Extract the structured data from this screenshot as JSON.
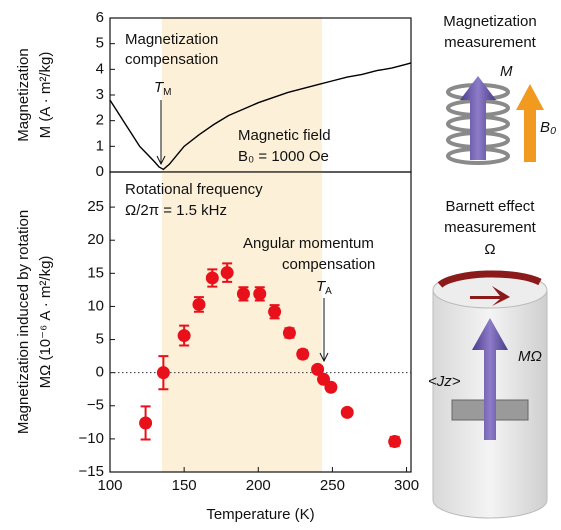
{
  "chart_data": [
    {
      "type": "line",
      "y_label": [
        "Magnetization",
        "M (A · m²/kg)"
      ],
      "annotations": {
        "compensation": [
          "Magnetization",
          "compensation"
        ],
        "temp": {
          "text": "T",
          "sub": "M"
        },
        "field": [
          "Magnetic field",
          "B₀ = 1000 Oe"
        ]
      },
      "x": [
        100,
        105,
        110,
        115,
        120,
        125,
        130,
        133,
        136,
        140,
        145,
        150,
        160,
        170,
        180,
        190,
        200,
        210,
        220,
        230,
        240,
        250,
        260,
        270,
        280,
        290,
        300,
        303
      ],
      "series": [
        {
          "color": "#000000",
          "values": [
            2.8,
            2.35,
            1.9,
            1.45,
            1.0,
            0.7,
            0.4,
            0.2,
            0.1,
            0.3,
            0.65,
            1.0,
            1.45,
            1.85,
            2.2,
            2.45,
            2.7,
            2.9,
            3.1,
            3.25,
            3.4,
            3.55,
            3.7,
            3.8,
            3.95,
            4.05,
            4.2,
            4.25
          ]
        }
      ],
      "xlim": [
        100,
        303
      ],
      "ylim": [
        0,
        6
      ],
      "yticks": [
        0,
        1,
        2,
        3,
        4,
        5,
        6
      ],
      "shaded_range": [
        135,
        243
      ],
      "shade_color": "#fdf0d8"
    },
    {
      "type": "scatter",
      "x_label": "Temperature (K)",
      "y_label": [
        "Magnetization induced by rotation",
        "MΩ (10⁻⁶ A · m²/kg)"
      ],
      "annotations": {
        "frequency": [
          "Rotational frequency",
          "Ω/2π = 1.5 kHz"
        ],
        "compensation": [
          "Angular momentum",
          "compensation"
        ],
        "temp": {
          "text": "T",
          "sub": "A"
        }
      },
      "x": [
        124,
        136,
        150,
        160,
        169,
        179,
        190,
        201,
        211,
        221,
        230,
        240,
        244,
        249,
        260,
        292
      ],
      "series": [
        {
          "color": "#e8101a",
          "values": [
            -7.6,
            0,
            5.6,
            10.3,
            14.3,
            15.1,
            11.9,
            11.9,
            9.2,
            6.0,
            2.8,
            0.5,
            -1.0,
            -2.2,
            -6.0,
            -10.4
          ],
          "errors": [
            2.5,
            2.5,
            1.5,
            1.1,
            1.3,
            1.4,
            1.0,
            1.0,
            1.0,
            0.7,
            0.6,
            0.5,
            0.4,
            0.4,
            0.4,
            0.7
          ]
        }
      ],
      "xlim": [
        100,
        303
      ],
      "xticks": [
        100,
        150,
        200,
        250,
        300
      ],
      "ylim": [
        -15,
        30.3
      ],
      "yticks": [
        {
          "value": -15,
          "label": "−15"
        },
        {
          "value": -10,
          "label": "−10"
        },
        {
          "value": -5,
          "label": "−5"
        },
        0,
        5,
        10,
        15,
        20,
        25
      ],
      "zero_line": true,
      "shaded_range": [
        135,
        243
      ],
      "shade_color": "#fdf0d8"
    }
  ],
  "diagram": {
    "top_title": [
      "Magnetization",
      "measurement"
    ],
    "top_m": "M",
    "top_b": "B₀",
    "bottom_title": [
      "Barnett effect",
      "measurement"
    ],
    "omega": "Ω",
    "m_omega": "MΩ",
    "jz": "<Jz>"
  }
}
